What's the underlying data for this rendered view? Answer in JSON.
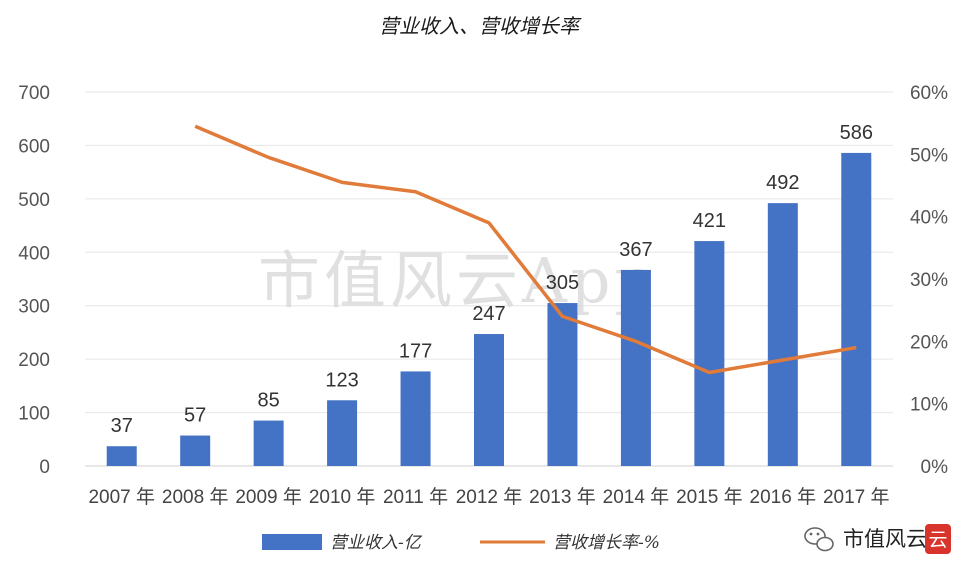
{
  "chart_data": {
    "type": "bar+line",
    "title": "营业收入、营收增长率",
    "categories": [
      "2007 年",
      "2008 年",
      "2009 年",
      "2010 年",
      "2011 年",
      "2012 年",
      "2013 年",
      "2014 年",
      "2015 年",
      "2016 年",
      "2017 年"
    ],
    "series": [
      {
        "name": "营业收入-亿",
        "type": "bar",
        "axis": "left",
        "color": "#4472C4",
        "values": [
          37,
          57,
          85,
          123,
          177,
          247,
          305,
          367,
          421,
          492,
          586
        ],
        "labels": [
          "37",
          "57",
          "85",
          "123",
          "177",
          "247",
          "305",
          "367",
          "421",
          "492",
          "586"
        ]
      },
      {
        "name": "营收增长率-%",
        "type": "line",
        "axis": "right",
        "color": "#E07B3A",
        "values": [
          null,
          54.5,
          49.5,
          45.5,
          44,
          39,
          24,
          20,
          15,
          17,
          19
        ]
      }
    ],
    "y_left": {
      "min": 0,
      "max": 700,
      "ticks": [
        "0",
        "100",
        "200",
        "300",
        "400",
        "500",
        "600",
        "700"
      ]
    },
    "y_right": {
      "min": 0,
      "max": 60,
      "ticks": [
        "0%",
        "10%",
        "20%",
        "30%",
        "40%",
        "50%",
        "60%"
      ]
    },
    "grid": true,
    "legend_position": "bottom"
  },
  "watermark": "市值风云App",
  "brand": {
    "text": "市值风云",
    "logo_char": "云",
    "logo_color": "#D9342B",
    "icon": "wechat-icon"
  }
}
